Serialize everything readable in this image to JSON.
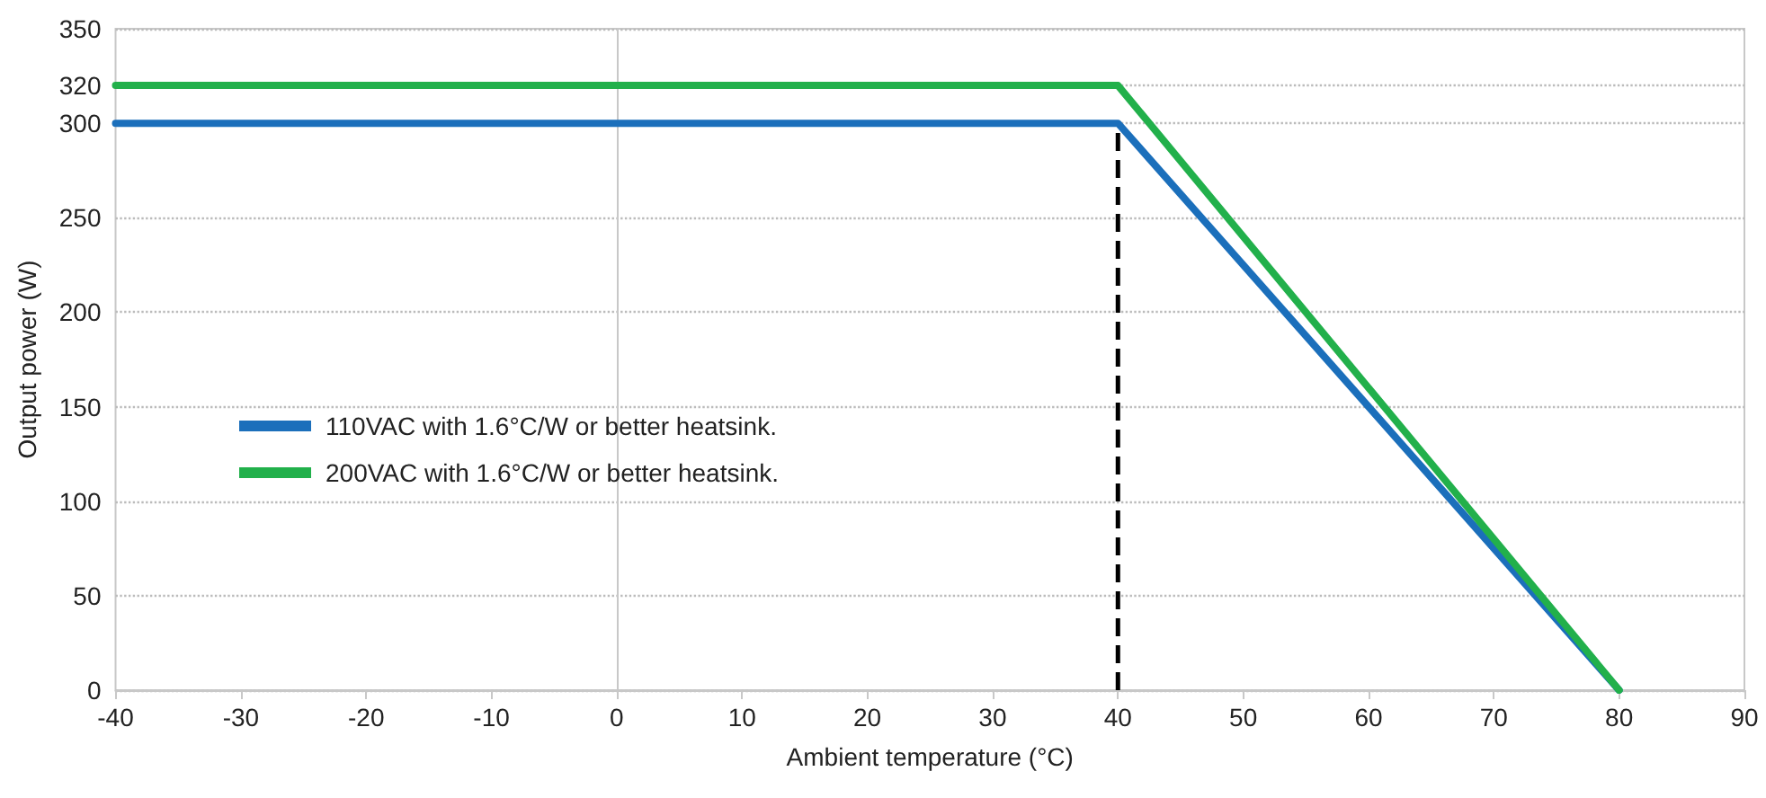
{
  "chart_data": {
    "type": "line",
    "xlabel": "Ambient temperature (°C)",
    "ylabel": "Output power (W)",
    "xlim": [
      -40,
      90
    ],
    "xticks": [
      -40,
      -30,
      -20,
      -10,
      0,
      10,
      20,
      30,
      40,
      50,
      60,
      70,
      80,
      90
    ],
    "ylim": [
      0,
      350
    ],
    "yticks": [
      0,
      50,
      100,
      150,
      200,
      250,
      300,
      320,
      350
    ],
    "series": [
      {
        "name": "110VAC with 1.6°C/W or better heatsink.",
        "color": "#1b6fbb",
        "x": [
          -40,
          40,
          80
        ],
        "values": [
          300,
          300,
          0
        ]
      },
      {
        "name": "200VAC with 1.6°C/W or better heatsink.",
        "color": "#22b04b",
        "x": [
          -40,
          40,
          80
        ],
        "values": [
          320,
          320,
          0
        ]
      }
    ],
    "ref_lines": [
      {
        "axis": "x",
        "value": 40,
        "color": "#000000",
        "line_style": "dashed"
      }
    ],
    "grid": "y",
    "legend": "left",
    "marker": "none",
    "line_style": "solid"
  }
}
